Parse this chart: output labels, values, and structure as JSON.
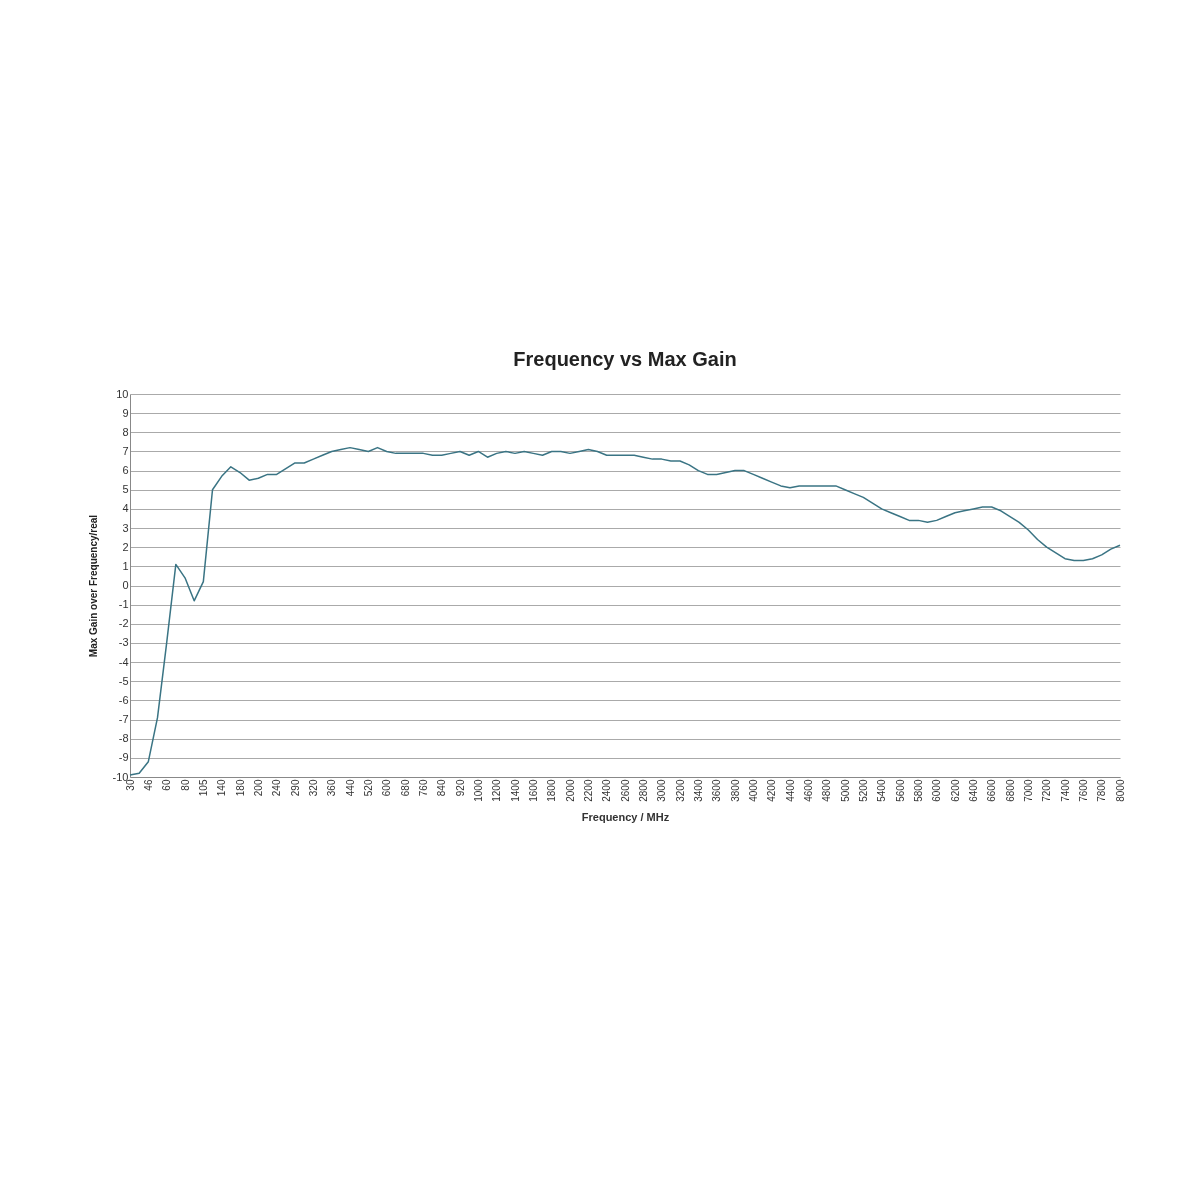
{
  "chart_data": {
    "type": "line",
    "title": "Frequency vs Max Gain",
    "xlabel": "Frequency / MHz",
    "ylabel": "Max Gain over Frequency/real",
    "categories": [
      "30",
      null,
      "46",
      null,
      "60",
      null,
      "80",
      null,
      "105",
      null,
      "140",
      null,
      "180",
      null,
      "200",
      null,
      "240",
      null,
      "290",
      null,
      "320",
      null,
      "360",
      null,
      "440",
      null,
      "520",
      null,
      "600",
      null,
      "680",
      null,
      "760",
      null,
      "840",
      null,
      "920",
      null,
      "1000",
      null,
      "1200",
      null,
      "1400",
      null,
      "1600",
      null,
      "1800",
      null,
      "2000",
      null,
      "2200",
      null,
      "2400",
      null,
      "2600",
      null,
      "2800",
      null,
      "3000",
      null,
      "3200",
      null,
      "3400",
      null,
      "3600",
      null,
      "3800",
      null,
      "4000",
      null,
      "4200",
      null,
      "4400",
      null,
      "4600",
      null,
      "4800",
      null,
      "5000",
      null,
      "5200",
      null,
      "5400",
      null,
      "5600",
      null,
      "5800",
      null,
      "6000",
      null,
      "6200",
      null,
      "6400",
      null,
      "6600",
      null,
      "6800",
      null,
      "7000",
      null,
      "7200",
      null,
      "7400",
      null,
      "7600",
      null,
      "7800",
      null,
      "8000"
    ],
    "series": [
      {
        "color": "#3a7484",
        "values": [
          -9.9,
          -9.8,
          -9.2,
          -6.9,
          -3.0,
          1.1,
          0.4,
          -0.8,
          0.2,
          5.0,
          5.7,
          6.2,
          5.9,
          5.5,
          5.6,
          5.8,
          5.8,
          6.1,
          6.4,
          6.4,
          6.6,
          6.8,
          7.0,
          7.1,
          7.2,
          7.1,
          7.0,
          7.2,
          7.0,
          6.9,
          6.9,
          6.9,
          6.9,
          6.8,
          6.8,
          6.9,
          7.0,
          6.8,
          7.0,
          6.7,
          6.9,
          7.0,
          6.9,
          7.0,
          6.9,
          6.8,
          7.0,
          7.0,
          6.9,
          7.0,
          7.1,
          7.0,
          6.8,
          6.8,
          6.8,
          6.8,
          6.7,
          6.6,
          6.6,
          6.5,
          6.5,
          6.3,
          6.0,
          5.8,
          5.8,
          5.9,
          6.0,
          6.0,
          5.8,
          5.6,
          5.4,
          5.2,
          5.1,
          5.2,
          5.2,
          5.2,
          5.2,
          5.2,
          5.0,
          4.8,
          4.6,
          4.3,
          4.0,
          3.8,
          3.6,
          3.4,
          3.4,
          3.3,
          3.4,
          3.6,
          3.8,
          3.9,
          4.0,
          4.1,
          4.1,
          3.9,
          3.6,
          3.3,
          2.9,
          2.4,
          2.0,
          1.7,
          1.4,
          1.3,
          1.3,
          1.4,
          1.6,
          1.9,
          2.1
        ]
      }
    ],
    "ylim": [
      -10,
      10
    ],
    "yticks": [
      -10,
      -9,
      -8,
      -7,
      -6,
      -5,
      -4,
      -3,
      -2,
      -1,
      0,
      1,
      2,
      3,
      4,
      5,
      6,
      7,
      8,
      9,
      10
    ],
    "grid": "y",
    "marker": "none",
    "line_style": "solid"
  }
}
